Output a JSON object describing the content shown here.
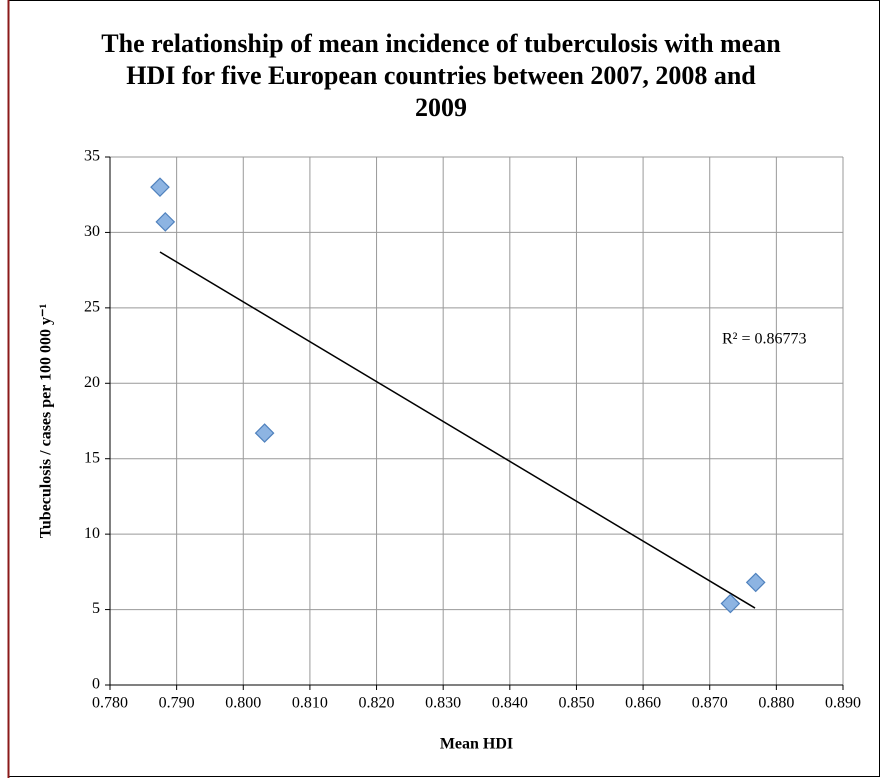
{
  "chart_data": {
    "type": "scatter",
    "title": "The relationship of mean incidence of tuberculosis with mean HDI for five European countries between 2007, 2008 and 2009",
    "x_label": "Mean HDI",
    "y_label": "Tubeculosis / cases per 100 000 y⁻¹",
    "annotation": "R² = 0.86773",
    "x": [
      0.7875,
      0.7883,
      0.8032,
      0.8731,
      0.8769
    ],
    "values": [
      33.0,
      30.7,
      16.7,
      5.4,
      6.8
    ],
    "color": "#8db4e2",
    "trendline": {
      "x": [
        0.7875,
        0.8768
      ],
      "y": [
        28.7,
        5.1
      ]
    },
    "xlim": [
      0.78,
      0.89
    ],
    "xticks": [
      {
        "value": 0.78,
        "label": "0.780"
      },
      {
        "value": 0.79,
        "label": "0.790"
      },
      {
        "value": 0.8,
        "label": "0.800"
      },
      {
        "value": 0.81,
        "label": "0.810"
      },
      {
        "value": 0.82,
        "label": "0.820"
      },
      {
        "value": 0.83,
        "label": "0.830"
      },
      {
        "value": 0.84,
        "label": "0.840"
      },
      {
        "value": 0.85,
        "label": "0.850"
      },
      {
        "value": 0.86,
        "label": "0.860"
      },
      {
        "value": 0.87,
        "label": "0.870"
      },
      {
        "value": 0.88,
        "label": "0.880"
      },
      {
        "value": 0.89,
        "label": "0.890"
      }
    ],
    "ylim": [
      0,
      35
    ],
    "yticks": [
      0,
      5,
      10,
      15,
      20,
      25,
      30,
      35
    ],
    "grid": true
  }
}
